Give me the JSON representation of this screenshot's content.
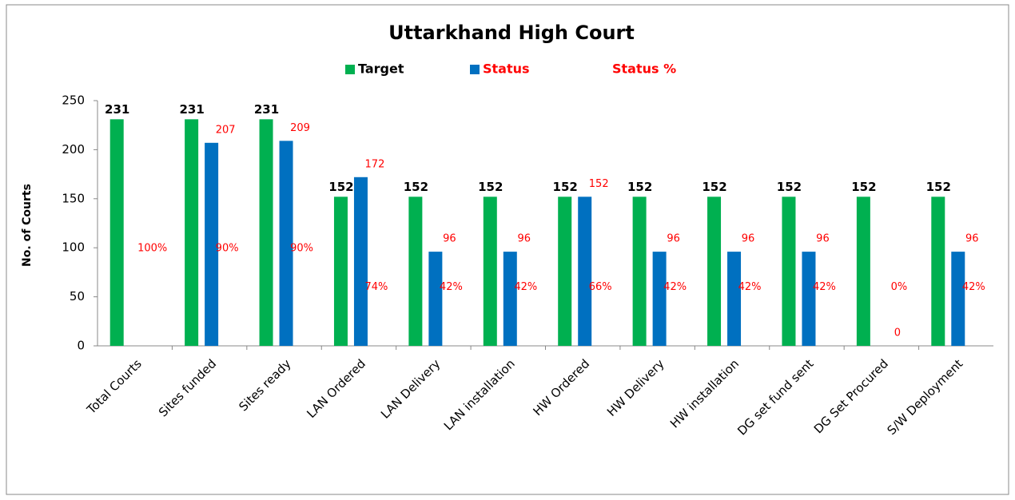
{
  "chart_data": {
    "type": "bar",
    "title": "Uttarkhand High Court",
    "y_label": "No. of Courts",
    "categories": [
      "Total Courts",
      "Sites funded",
      "Sites ready",
      "LAN Ordered",
      "LAN Delivery",
      "LAN installation",
      "HW Ordered",
      "HW Delivery",
      "HW installation",
      "DG set fund sent",
      "DG Set Procured",
      "S/W Deployment"
    ],
    "series": [
      {
        "name": "Target",
        "color": "#00b050",
        "values": [
          231,
          231,
          231,
          152,
          152,
          152,
          152,
          152,
          152,
          152,
          152,
          152
        ]
      },
      {
        "name": "Status",
        "color": "#0070c0",
        "values": [
          null,
          207,
          209,
          172,
          96,
          96,
          152,
          96,
          96,
          96,
          0,
          96
        ]
      },
      {
        "name": "Status %",
        "color": "#ff0000",
        "style": "labels",
        "values": [
          100,
          90,
          90,
          74,
          42,
          42,
          66,
          42,
          42,
          42,
          0,
          42
        ],
        "value_labels": [
          "100%",
          "90%",
          "90%",
          "74%",
          "42%",
          "42%",
          "66%",
          "42%",
          "42%",
          "42%",
          "0%",
          "42%"
        ]
      }
    ],
    "ylim": [
      0,
      250
    ],
    "yticks": [
      0,
      50,
      100,
      150,
      200,
      250
    ],
    "grid": false,
    "legend": "top"
  }
}
